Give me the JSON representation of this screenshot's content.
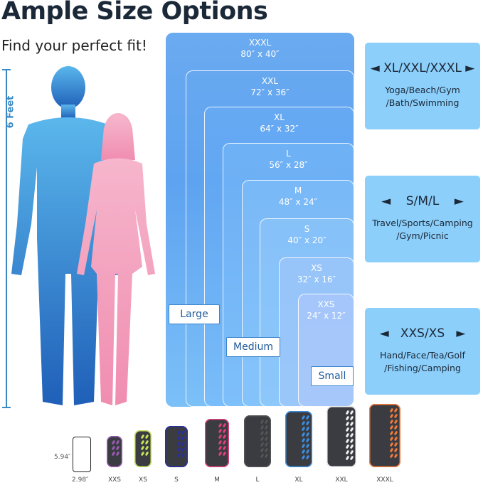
{
  "title": "Ample Size Options",
  "subtitle": "Find your perfect fit!",
  "height_label": "6 Feet",
  "sizes": [
    {
      "name": "XXXL",
      "dims": "80″ x 40″"
    },
    {
      "name": "XXL",
      "dims": "72″ x 36″"
    },
    {
      "name": "XL",
      "dims": "64″ x 32″"
    },
    {
      "name": "L",
      "dims": "56″ x 28″"
    },
    {
      "name": "M",
      "dims": "48″ x 24″"
    },
    {
      "name": "S",
      "dims": "40″ x 20″"
    },
    {
      "name": "XS",
      "dims": "32″ x 16″"
    },
    {
      "name": "XXS",
      "dims": "24″ x 12″"
    }
  ],
  "groups": {
    "large": "Large",
    "medium": "Medium",
    "small": "Small"
  },
  "panels": [
    {
      "heading": "◄ XL/XXL/XXXL ►",
      "desc1": "Yoga/Beach/Gym",
      "desc2": "/Bath/Swimming"
    },
    {
      "heading": "◄    S/M/L    ►",
      "desc1": "Travel/Sports/Camping",
      "desc2": "/Gym/Picnic"
    },
    {
      "heading": "◄   XXS/XS   ►",
      "desc1": "Hand/Face/Tea/Golf",
      "desc2": "/Fishing/Camping"
    }
  ],
  "phone": {
    "height": "5.94″",
    "width": "2.98″"
  },
  "towels": [
    {
      "label": "XXS",
      "color": "#9b59b6"
    },
    {
      "label": "XS",
      "color": "#c6e35a"
    },
    {
      "label": "S",
      "color": "#2a2fa0"
    },
    {
      "label": "M",
      "color": "#e0407f"
    },
    {
      "label": "L",
      "color": "#555555"
    },
    {
      "label": "XL",
      "color": "#3a8ee0"
    },
    {
      "label": "XXL",
      "color": "#f0f0f0"
    },
    {
      "label": "XXXL",
      "color": "#f07a3a"
    }
  ],
  "colors": {
    "man": "#3a8fd8",
    "woman": "#f4a8c4",
    "panel": "#8ccffa",
    "box": "#6aaaf0"
  }
}
